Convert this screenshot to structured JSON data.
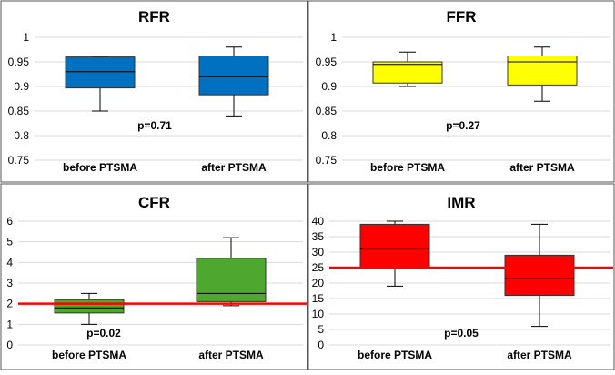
{
  "chart_data": [
    {
      "type": "box",
      "title": "RFR",
      "categories": [
        "before PTSMA",
        "after PTSMA"
      ],
      "yticks": [
        "1",
        "0.95",
        "0.9",
        "0.85",
        "0.8",
        "0.75"
      ],
      "ylim": [
        0.75,
        1.0
      ],
      "boxes": [
        {
          "min": 0.85,
          "q1": 0.897,
          "median": 0.93,
          "q3": 0.96,
          "max": 0.96
        },
        {
          "min": 0.84,
          "q1": 0.883,
          "median": 0.92,
          "q3": 0.962,
          "max": 0.98
        }
      ],
      "box_color": "#0070C0",
      "p_value": "p=0.71",
      "reference_line": null
    },
    {
      "type": "box",
      "title": "FFR",
      "categories": [
        "before PTSMA",
        "after PTSMA"
      ],
      "yticks": [
        "1",
        "0.95",
        "0.9",
        "0.85",
        "0.8",
        "0.75"
      ],
      "ylim": [
        0.75,
        1.0
      ],
      "boxes": [
        {
          "min": 0.9,
          "q1": 0.907,
          "median": 0.945,
          "q3": 0.95,
          "max": 0.97
        },
        {
          "min": 0.87,
          "q1": 0.903,
          "median": 0.95,
          "q3": 0.962,
          "max": 0.98
        }
      ],
      "box_color": "#FFFF00",
      "p_value": "p=0.27",
      "reference_line": null
    },
    {
      "type": "box",
      "title": "CFR",
      "categories": [
        "before PTSMA",
        "after PTSMA"
      ],
      "yticks": [
        "6",
        "5",
        "4",
        "3",
        "2",
        "1",
        "0"
      ],
      "ylim": [
        0,
        6
      ],
      "boxes": [
        {
          "min": 1.0,
          "q1": 1.55,
          "median": 1.8,
          "q3": 2.2,
          "max": 2.5
        },
        {
          "min": 1.9,
          "q1": 2.1,
          "median": 2.5,
          "q3": 4.2,
          "max": 5.2
        }
      ],
      "box_color": "#4EA72E",
      "p_value": "p=0.02",
      "reference_line": 2.0
    },
    {
      "type": "box",
      "title": "IMR",
      "categories": [
        "before PTSMA",
        "after PTSMA"
      ],
      "yticks": [
        "40",
        "35",
        "30",
        "25",
        "20",
        "15",
        "10",
        "5",
        "0"
      ],
      "ylim": [
        0,
        40
      ],
      "boxes": [
        {
          "min": 19,
          "q1": 25,
          "median": 31,
          "q3": 39,
          "max": 40
        },
        {
          "min": 6,
          "q1": 16,
          "median": 21.5,
          "q3": 29,
          "max": 39
        }
      ],
      "box_color": "#FF0000",
      "p_value": "p=0.05",
      "reference_line": 25
    }
  ]
}
